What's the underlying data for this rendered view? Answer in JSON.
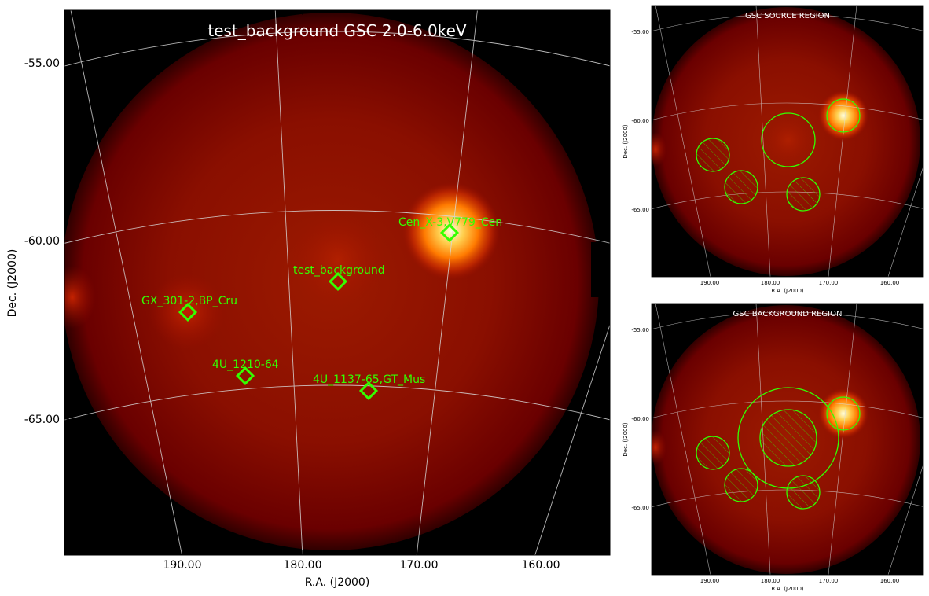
{
  "main_panel": {
    "title": "test_background GSC 2.0-6.0keV",
    "xlabel": "R.A. (J2000)",
    "ylabel": "Dec. (J2000)",
    "x_ticks": [
      "190.00",
      "180.00",
      "170.00",
      "160.00"
    ],
    "y_ticks": [
      "-55.00",
      "-60.00",
      "-65.00"
    ],
    "sources": [
      {
        "label": "Cen_X-3,V779_Cen"
      },
      {
        "label": "test_background"
      },
      {
        "label": "GX_301-2,BP_Cru"
      },
      {
        "label": "4U_1210-64"
      },
      {
        "label": "4U_1137-65,GT_Mus"
      }
    ]
  },
  "source_panel": {
    "title": "GSC SOURCE REGION",
    "xlabel": "R.A. (J2000)",
    "ylabel": "Dec. (J2000)",
    "x_ticks": [
      "190.00",
      "180.00",
      "170.00",
      "160.00"
    ],
    "y_ticks": [
      "-55.00",
      "-60.00",
      "-65.00"
    ]
  },
  "background_panel": {
    "title": "GSC BACKGROUND REGION",
    "xlabel": "R.A. (J2000)",
    "ylabel": "Dec. (J2000)",
    "x_ticks": [
      "190.00",
      "180.00",
      "170.00",
      "160.00"
    ],
    "y_ticks": [
      "-55.00",
      "-60.00",
      "-65.00"
    ]
  },
  "colors": {
    "marker": "#33ff00",
    "grid": "#cfcfcf",
    "sky_edge": "#6e0000",
    "sky_center": "#a01800"
  }
}
